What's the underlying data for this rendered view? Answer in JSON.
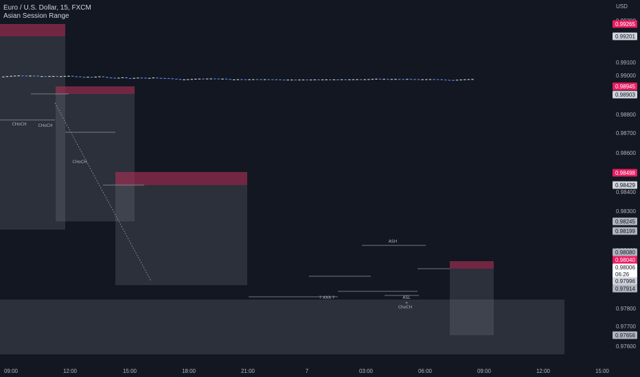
{
  "header": {
    "symbol": "Euro / U.S. Dollar, 15, FXCM",
    "indicator": "Asian Session Range"
  },
  "chart_data": {
    "type": "candlestick",
    "currency_label": "USD",
    "ylim": [
      0.9756,
      0.9934
    ],
    "y_ticks": [
      "0.99300",
      "0.99100",
      "0.99000",
      "0.98800",
      "0.98700",
      "0.98600",
      "0.98400",
      "0.98300",
      "0.98100",
      "0.97800",
      "0.97700",
      "0.97600"
    ],
    "x_ticks": [
      "09:00",
      "12:00",
      "15:00",
      "18:00",
      "21:00",
      "7",
      "03:00",
      "06:00",
      "09:00",
      "12:00",
      "15:00"
    ],
    "price_tags": [
      {
        "value": "0.99265",
        "kind": "red"
      },
      {
        "value": "0.99201",
        "kind": "light"
      },
      {
        "value": "0.98945",
        "kind": "red"
      },
      {
        "value": "0.98903",
        "kind": "light"
      },
      {
        "value": "0.98498",
        "kind": "red"
      },
      {
        "value": "0.98429",
        "kind": "light"
      },
      {
        "value": "0.98245",
        "kind": "grey"
      },
      {
        "value": "0.98199",
        "kind": "grey"
      },
      {
        "value": "0.98080",
        "kind": "grey"
      },
      {
        "value": "0.98040",
        "kind": "red"
      },
      {
        "value": "0.98006",
        "kind": "current"
      },
      {
        "value": "06:26",
        "kind": "timer"
      },
      {
        "value": "0.97996",
        "kind": "light"
      },
      {
        "value": "0.97914",
        "kind": "grey"
      },
      {
        "value": "0.97656",
        "kind": "grey"
      }
    ],
    "annotations": [
      "CHoCH",
      "CHoCH",
      "CHoCH",
      "? XXX ?",
      "ASH",
      "ASL",
      "ChoCH"
    ],
    "colors": {
      "bull": "#d1d4dc",
      "bear": "#5b8fe8",
      "session_box": "rgba(120,123,134,0.25)",
      "session_high": "rgba(171,32,72,0.55)",
      "background": "#131722"
    }
  }
}
